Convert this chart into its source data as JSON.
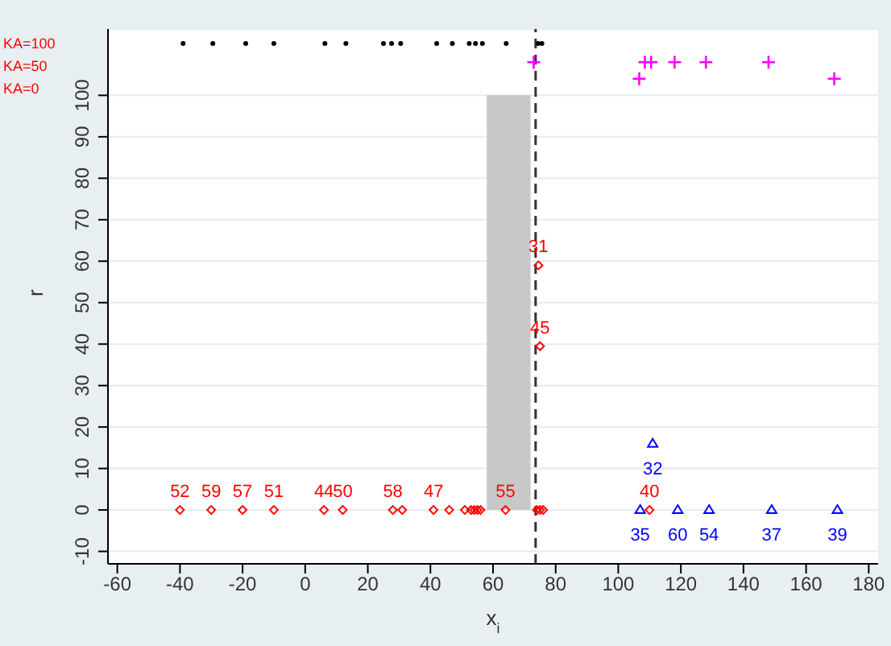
{
  "chart_data": {
    "type": "scatter",
    "xlabel": "x$_{i}$",
    "ylabel": "r",
    "xlim": [
      -63,
      183
    ],
    "xticks": [
      -60,
      -40,
      -20,
      0,
      20,
      40,
      60,
      80,
      100,
      120,
      140,
      160,
      180
    ],
    "ylim": [
      -13,
      116
    ],
    "yticks": [
      -10,
      0,
      10,
      20,
      30,
      40,
      50,
      60,
      70,
      80,
      90,
      100
    ],
    "grid": "y",
    "legend": false,
    "annotations": [
      "KA=100",
      "KA=50",
      "KA=0",
      {
        "text": "52",
        "x": -40,
        "y": 0
      },
      {
        "text": "59",
        "x": -30,
        "y": 0
      },
      {
        "text": "57",
        "x": -20,
        "y": 0
      },
      {
        "text": "51",
        "x": -10,
        "y": 0
      },
      {
        "text": "44",
        "x": 6,
        "y": 0
      },
      {
        "text": "50",
        "x": 12,
        "y": 0
      },
      {
        "text": "58",
        "x": 28,
        "y": 0
      },
      {
        "text": "47",
        "x": 41,
        "y": 0
      },
      {
        "text": "55",
        "x": 64,
        "y": 0
      },
      {
        "text": "31",
        "x": 74.5,
        "y": 59
      },
      {
        "text": "45",
        "x": 75,
        "y": 39.5
      },
      {
        "text": "40",
        "x": 110,
        "y": 0
      },
      {
        "text": "35",
        "x": 107,
        "y": 0
      },
      {
        "text": "32",
        "x": 111,
        "y": 16
      },
      {
        "text": "60",
        "x": 119,
        "y": 0
      },
      {
        "text": "54",
        "x": 129,
        "y": 0
      },
      {
        "text": "37",
        "x": 149,
        "y": 0
      },
      {
        "text": "39",
        "x": 170,
        "y": 0
      }
    ],
    "bands": [
      {
        "axis": "x",
        "from": 58,
        "to": 72,
        "color": "#c8c8c8"
      }
    ],
    "ref_lines": [
      {
        "axis": "x",
        "value": 73.6,
        "line_style": "dashed",
        "color": "#333333"
      }
    ],
    "series": [
      {
        "color": "#ff0000",
        "marker": "diamond",
        "x": [
          -40,
          -30,
          -20,
          -10,
          6,
          12,
          28,
          31,
          41,
          46,
          51,
          53,
          54,
          55,
          56,
          64,
          74,
          75,
          76,
          74.5,
          75,
          110
        ],
        "values": [
          0,
          0,
          0,
          0,
          0,
          0,
          0,
          0,
          0,
          0,
          0,
          0,
          0,
          0,
          0,
          0,
          0,
          0,
          0,
          59,
          39.5,
          0
        ]
      },
      {
        "color": "#0000ff",
        "marker": "triangle",
        "x": [
          107,
          111,
          119,
          129,
          149,
          170
        ],
        "values": [
          0,
          16,
          0,
          0,
          0,
          0
        ]
      },
      {
        "color": "#000000",
        "marker": "circle",
        "x": [
          -39,
          -29.5,
          -19,
          -10,
          6.3,
          13,
          25,
          27.6,
          30.5,
          42,
          47,
          52.4,
          54.4,
          56.6,
          64.2,
          74.4,
          75.6
        ],
        "values": [
          112.5,
          112.5,
          112.5,
          112.5,
          112.5,
          112.5,
          112.5,
          112.5,
          112.5,
          112.5,
          112.5,
          112.5,
          112.5,
          112.5,
          112.5,
          112.5,
          112.5
        ]
      },
      {
        "color": "#ff00ff",
        "marker": "cross",
        "x": [
          73,
          108.5,
          110.5,
          118,
          128,
          148,
          106.7,
          169
        ],
        "values": [
          108,
          108,
          108,
          108,
          108,
          108,
          104,
          104
        ]
      }
    ]
  }
}
